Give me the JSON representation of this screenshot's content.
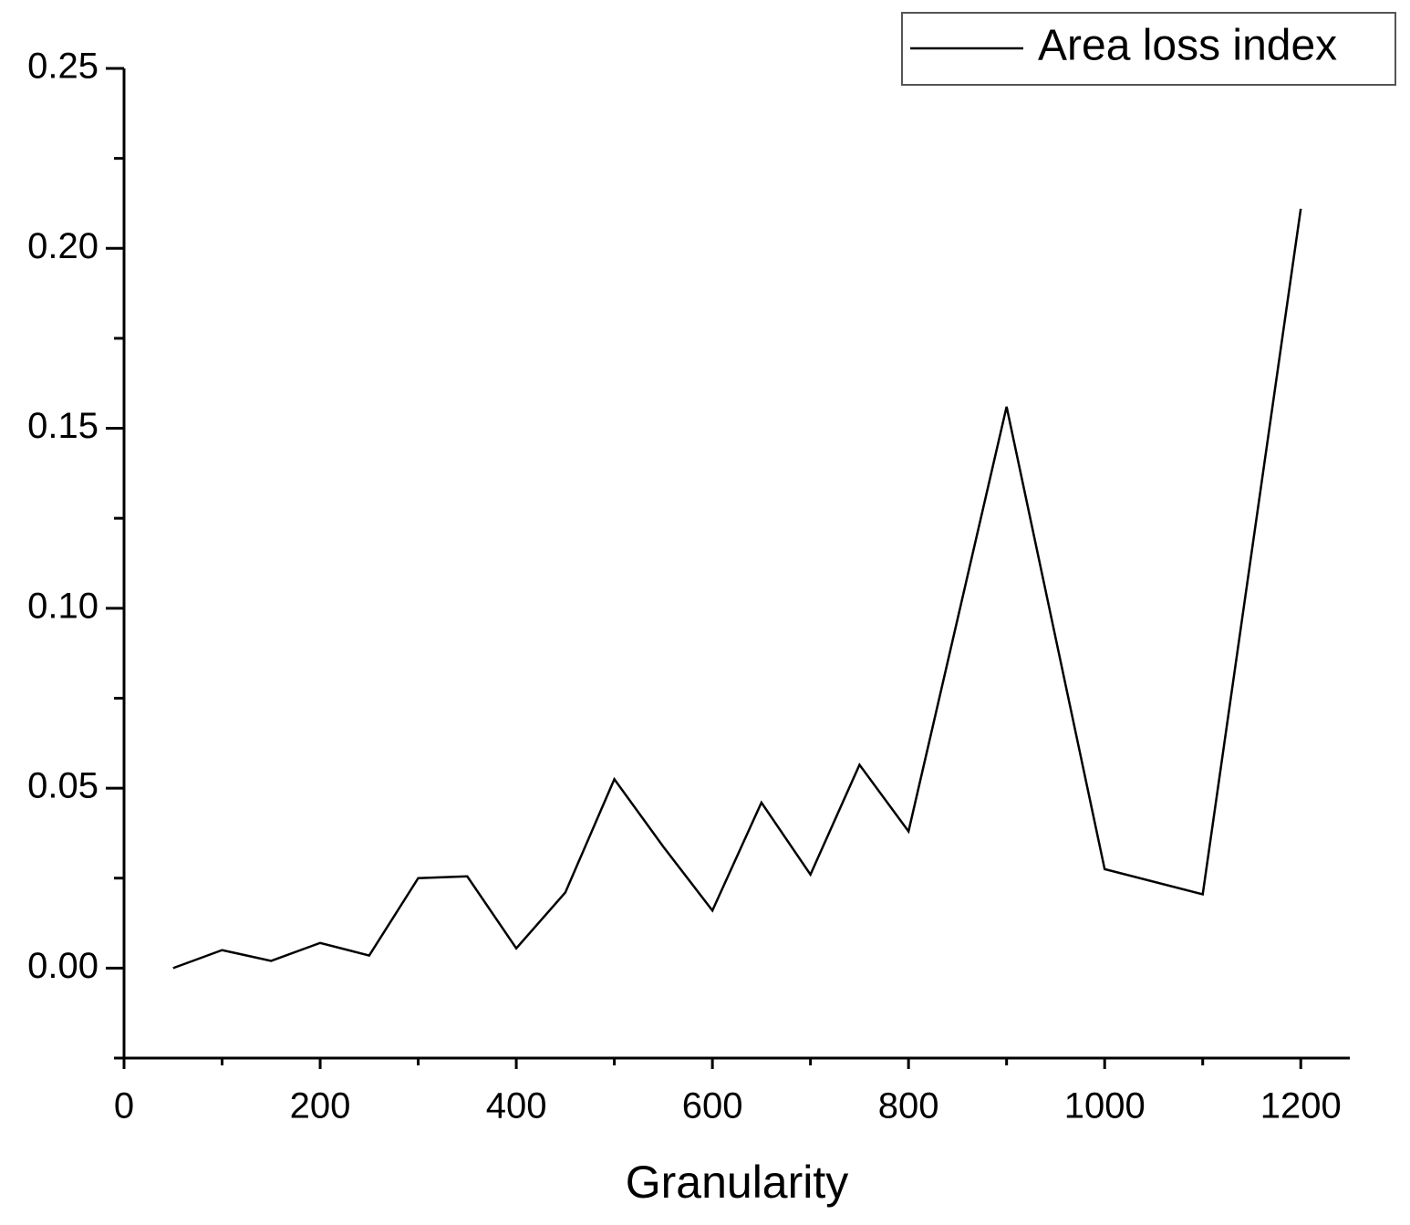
{
  "chart_data": {
    "type": "line",
    "x_label": "Granularity",
    "x": [
      50,
      100,
      150,
      200,
      250,
      300,
      350,
      400,
      450,
      500,
      550,
      600,
      650,
      700,
      750,
      800,
      900,
      1000,
      1100,
      1200
    ],
    "series": [
      {
        "name": "Area loss index",
        "color": "#000000",
        "values": [
          0.0,
          0.005,
          0.002,
          0.007,
          0.0035,
          0.025,
          0.0255,
          0.0055,
          0.021,
          0.0525,
          0.0337,
          0.016,
          0.046,
          0.026,
          0.0565,
          0.038,
          0.156,
          0.0275,
          0.0205,
          0.211
        ]
      }
    ],
    "xlim": [
      0,
      1250
    ],
    "xticks": [
      0,
      200,
      400,
      600,
      800,
      1000,
      1200
    ],
    "xticks_minor": [
      100,
      300,
      500,
      700,
      900,
      1100
    ],
    "ylim": [
      -0.025,
      0.25
    ],
    "yticks": [
      {
        "value": 0,
        "label": "0.00"
      },
      {
        "value": 0.05,
        "label": "0.05"
      },
      {
        "value": 0.1,
        "label": "0.10"
      },
      {
        "value": 0.15,
        "label": "0.15"
      },
      {
        "value": 0.2,
        "label": "0.20"
      },
      {
        "value": 0.25,
        "label": "0.25"
      }
    ],
    "yticks_minor": [
      -0.025,
      0.025,
      0.075,
      0.125,
      0.175,
      0.225
    ],
    "grid": false,
    "legend": "upper right"
  }
}
